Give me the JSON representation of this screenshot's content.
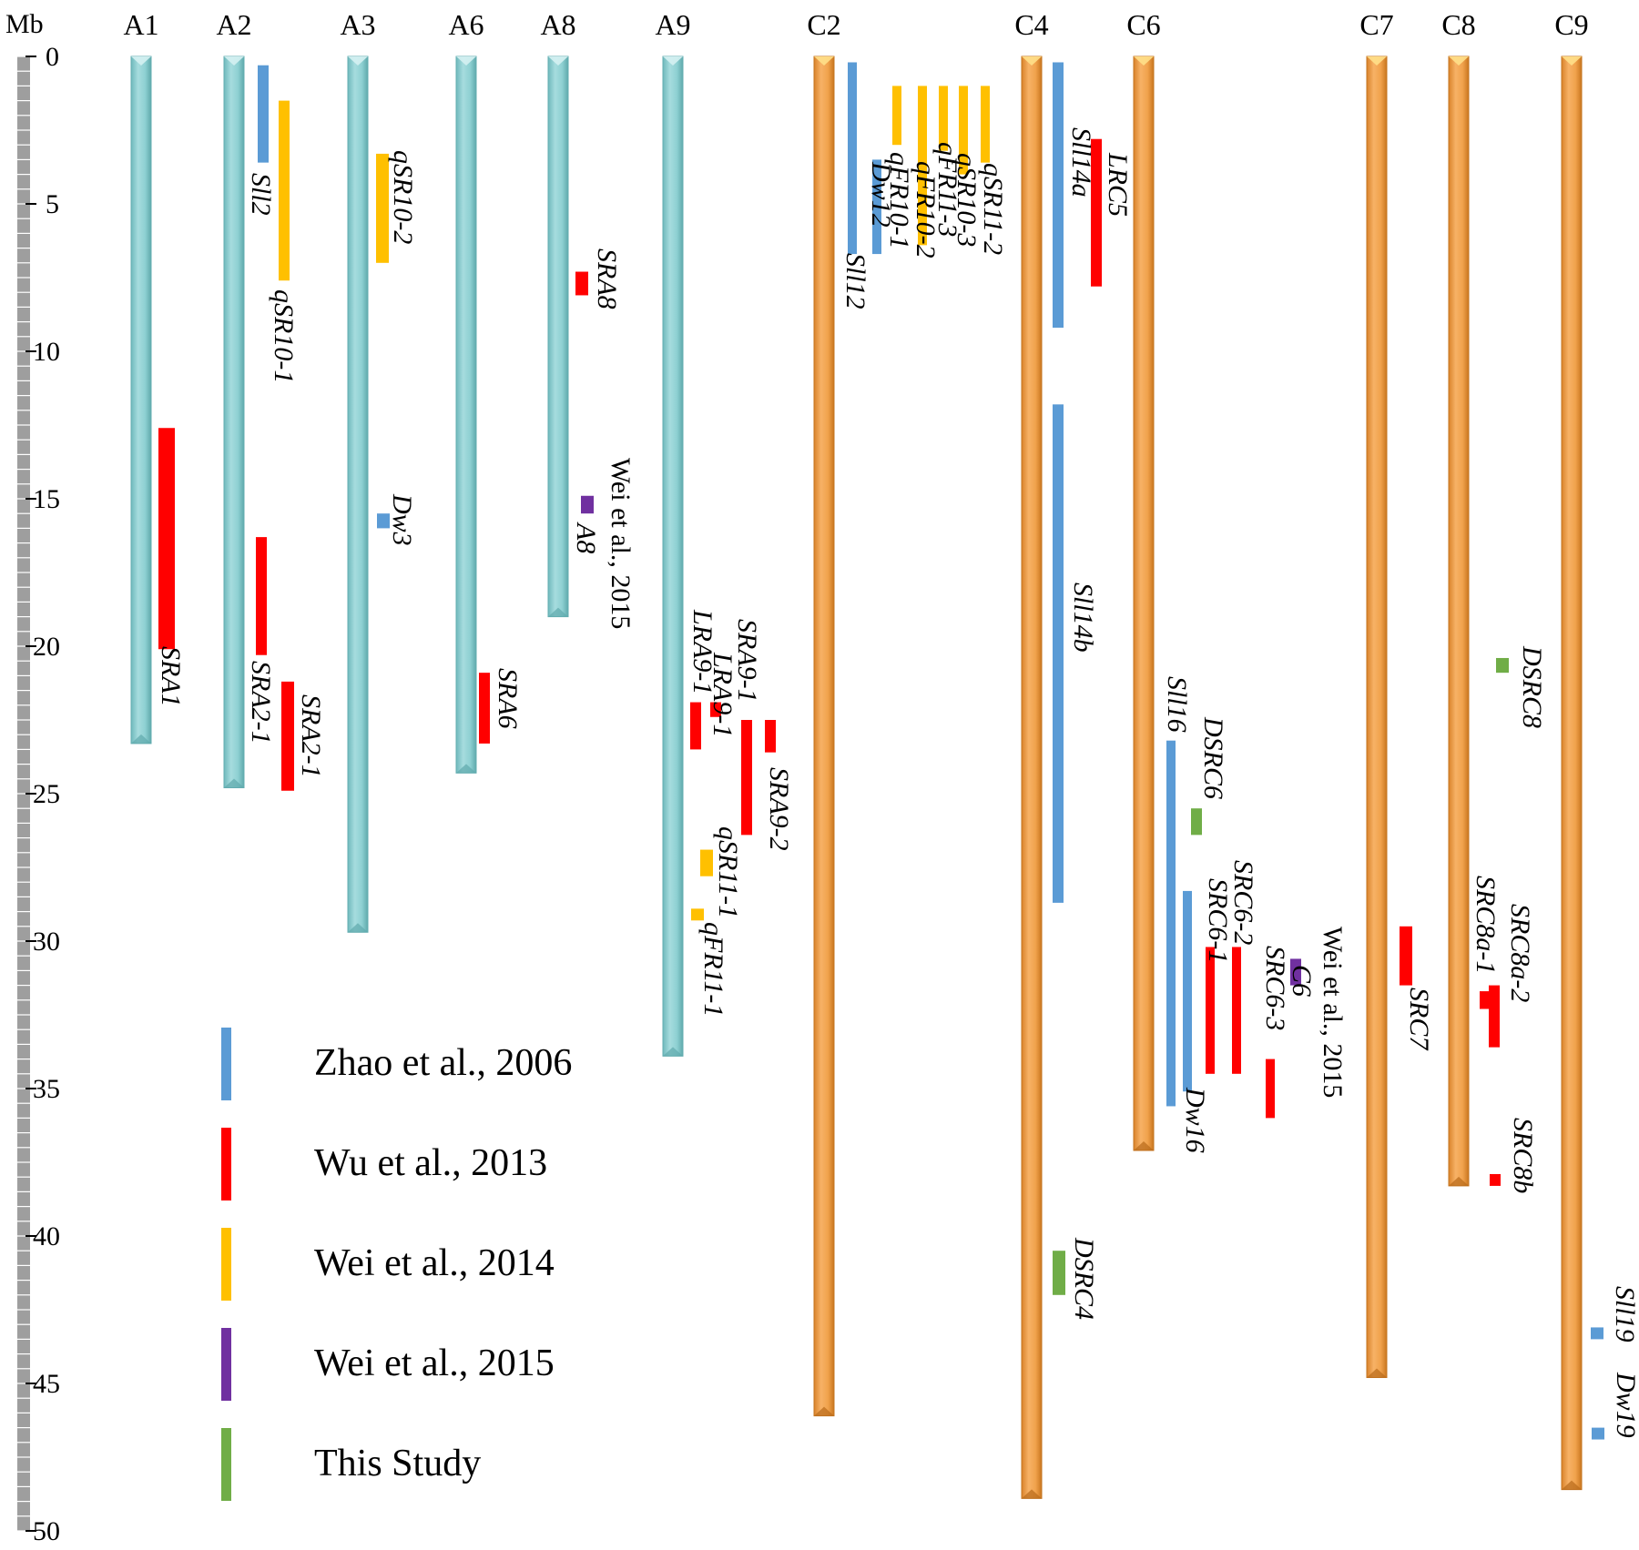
{
  "axis": {
    "unit_label": "Mb",
    "range_mb": [
      0,
      50
    ],
    "ticks": [
      "0",
      "5",
      "10",
      "15",
      "20",
      "25",
      "30",
      "35",
      "40",
      "45",
      "50"
    ]
  },
  "colors": {
    "chr_a": "#8ed0d2",
    "chr_c": "#f0a24c",
    "ruler": "#9e9e9e",
    "Zhao et al., 2006": "#5b9bd5",
    "Wu et al., 2013": "#ff0000",
    "Wei et al., 2014": "#ffc000",
    "Wei et al., 2015": "#7030a0",
    "This Study": "#70ad47"
  },
  "chromosomes": [
    {
      "name": "A1",
      "genome": "A",
      "length_mb": 23.3
    },
    {
      "name": "A2",
      "genome": "A",
      "length_mb": 24.8
    },
    {
      "name": "A3",
      "genome": "A",
      "length_mb": 29.7
    },
    {
      "name": "A6",
      "genome": "A",
      "length_mb": 24.3
    },
    {
      "name": "A8",
      "genome": "A",
      "length_mb": 19.0
    },
    {
      "name": "A9",
      "genome": "A",
      "length_mb": 33.9
    },
    {
      "name": "C2",
      "genome": "C",
      "length_mb": 46.1
    },
    {
      "name": "C4",
      "genome": "C",
      "length_mb": 48.9
    },
    {
      "name": "C6",
      "genome": "C",
      "length_mb": 37.1
    },
    {
      "name": "C7",
      "genome": "C",
      "length_mb": 44.8
    },
    {
      "name": "C8",
      "genome": "C",
      "length_mb": 38.3
    },
    {
      "name": "C9",
      "genome": "C",
      "length_mb": 48.6
    }
  ],
  "qtls": [
    {
      "chr": "A1",
      "label": "SRA1",
      "study": "Wu et al., 2013",
      "start_mb": 12.6,
      "end_mb": 20.1
    },
    {
      "chr": "A2",
      "label": "Sll2",
      "study": "Zhao et al., 2006",
      "start_mb": 0.3,
      "end_mb": 3.6
    },
    {
      "chr": "A2",
      "label": "qSR10-1",
      "study": "Wei et al., 2014",
      "start_mb": 1.5,
      "end_mb": 7.6
    },
    {
      "chr": "A2",
      "label": "SRA2-1",
      "study": "Wu et al., 2013",
      "start_mb": 16.3,
      "end_mb": 20.3
    },
    {
      "chr": "A2",
      "label": "SRA2-1",
      "study": "Wu et al., 2013",
      "start_mb": 21.2,
      "end_mb": 24.9
    },
    {
      "chr": "A3",
      "label": "qSR10-2",
      "study": "Wei et al., 2014",
      "start_mb": 3.3,
      "end_mb": 7.0
    },
    {
      "chr": "A3",
      "label": "Dw3",
      "study": "Zhao et al., 2006",
      "start_mb": 15.5,
      "end_mb": 16.0
    },
    {
      "chr": "A6",
      "label": "SRA6",
      "study": "Wu et al., 2013",
      "start_mb": 20.9,
      "end_mb": 23.3
    },
    {
      "chr": "A8",
      "label": "SRA8",
      "study": "Wu et al., 2013",
      "start_mb": 7.3,
      "end_mb": 8.1
    },
    {
      "chr": "A8",
      "label": "A8",
      "study": "Wei et al., 2015",
      "start_mb": 14.9,
      "end_mb": 15.5
    },
    {
      "chr": "A9",
      "label": "LRA9-1",
      "study": "Wu et al., 2013",
      "start_mb": 21.9,
      "end_mb": 23.5
    },
    {
      "chr": "A9",
      "label": "LRA9-1",
      "study": "Wu et al., 2013",
      "start_mb": 21.9,
      "end_mb": 22.4
    },
    {
      "chr": "A9",
      "label": "SRA9-1",
      "study": "Wu et al., 2013",
      "start_mb": 22.5,
      "end_mb": 26.4
    },
    {
      "chr": "A9",
      "label": "SRA9-2",
      "study": "Wu et al., 2013",
      "start_mb": 22.5,
      "end_mb": 23.6
    },
    {
      "chr": "A9",
      "label": "qSR11-1",
      "study": "Wei et al., 2014",
      "start_mb": 26.9,
      "end_mb": 27.8
    },
    {
      "chr": "A9",
      "label": "qFR11-1",
      "study": "Wei et al., 2014",
      "start_mb": 28.9,
      "end_mb": 29.3
    },
    {
      "chr": "C2",
      "label": "Sll12",
      "study": "Zhao et al., 2006",
      "start_mb": 0.2,
      "end_mb": 6.7
    },
    {
      "chr": "C2",
      "label": "Dw12",
      "study": "Zhao et al., 2006",
      "start_mb": 3.5,
      "end_mb": 6.7
    },
    {
      "chr": "C2",
      "label": "qFR10-1",
      "study": "Wei et al., 2014",
      "start_mb": 1.0,
      "end_mb": 3.0
    },
    {
      "chr": "C2",
      "label": "qFR10-2",
      "study": "Wei et al., 2014",
      "start_mb": 1.0,
      "end_mb": 6.4
    },
    {
      "chr": "C2",
      "label": "qFR11-3",
      "study": "Wei et al., 2014",
      "start_mb": 1.0,
      "end_mb": 3.2
    },
    {
      "chr": "C2",
      "label": "qSR10-3",
      "study": "Wei et al., 2014",
      "start_mb": 1.0,
      "end_mb": 4.0
    },
    {
      "chr": "C2",
      "label": "qSR11-2",
      "study": "Wei et al., 2014",
      "start_mb": 1.0,
      "end_mb": 3.6
    },
    {
      "chr": "C4",
      "label": "Sll14a",
      "study": "Zhao et al., 2006",
      "start_mb": 0.2,
      "end_mb": 9.2
    },
    {
      "chr": "C4",
      "label": "LRC5",
      "study": "Wu et al., 2013",
      "start_mb": 2.8,
      "end_mb": 7.8
    },
    {
      "chr": "C4",
      "label": "Sll14b",
      "study": "Zhao et al., 2006",
      "start_mb": 11.8,
      "end_mb": 28.7
    },
    {
      "chr": "C4",
      "label": "DSRC4",
      "study": "This Study",
      "start_mb": 40.5,
      "end_mb": 42.0
    },
    {
      "chr": "C6",
      "label": "Sll16",
      "study": "Zhao et al., 2006",
      "start_mb": 23.2,
      "end_mb": 35.6
    },
    {
      "chr": "C6",
      "label": "Dw16",
      "study": "Zhao et al., 2006",
      "start_mb": 28.3,
      "end_mb": 35.1
    },
    {
      "chr": "C6",
      "label": "DSRC6",
      "study": "This Study",
      "start_mb": 25.5,
      "end_mb": 26.4
    },
    {
      "chr": "C6",
      "label": "SRC6-1",
      "study": "Wu et al., 2013",
      "start_mb": 30.2,
      "end_mb": 34.5
    },
    {
      "chr": "C6",
      "label": "SRC6-2",
      "study": "Wu et al., 2013",
      "start_mb": 30.2,
      "end_mb": 34.5
    },
    {
      "chr": "C6",
      "label": "SRC6-3",
      "study": "Wu et al., 2013",
      "start_mb": 34.0,
      "end_mb": 36.0
    },
    {
      "chr": "C6",
      "label": "C6",
      "study": "Wei et al., 2015",
      "start_mb": 30.6,
      "end_mb": 31.5
    },
    {
      "chr": "C7",
      "label": "SRC7",
      "study": "Wu et al., 2013",
      "start_mb": 29.5,
      "end_mb": 31.5
    },
    {
      "chr": "C8",
      "label": "DSRC8",
      "study": "This Study",
      "start_mb": 20.4,
      "end_mb": 20.9
    },
    {
      "chr": "C8",
      "label": "SRC8a-1",
      "study": "Wu et al., 2013",
      "start_mb": 31.7,
      "end_mb": 32.3
    },
    {
      "chr": "C8",
      "label": "SRC8a-2",
      "study": "Wu et al., 2013",
      "start_mb": 31.5,
      "end_mb": 33.6
    },
    {
      "chr": "C8",
      "label": "SRC8b",
      "study": "Wu et al., 2013",
      "start_mb": 37.9,
      "end_mb": 38.3
    },
    {
      "chr": "C9",
      "label": "Sll19",
      "study": "Zhao et al., 2006",
      "start_mb": 43.1,
      "end_mb": 43.5
    },
    {
      "chr": "C9",
      "label": "Dw19",
      "study": "Zhao et al., 2006",
      "start_mb": 46.5,
      "end_mb": 46.9
    }
  ],
  "notes": [
    {
      "chr": "A8",
      "text": "Wei et al., 2015"
    },
    {
      "chr": "C6",
      "text": "Wei et al., 2015"
    }
  ],
  "legend": [
    {
      "study": "Zhao et al., 2006",
      "label": "Zhao et al., 2006"
    },
    {
      "study": "Wu et al., 2013",
      "label": "Wu et al., 2013"
    },
    {
      "study": "Wei et al., 2014",
      "label": "Wei et al., 2014"
    },
    {
      "study": "Wei et al., 2015",
      "label": "Wei et al., 2015"
    },
    {
      "study": "This Study",
      "label": "This Study"
    }
  ]
}
